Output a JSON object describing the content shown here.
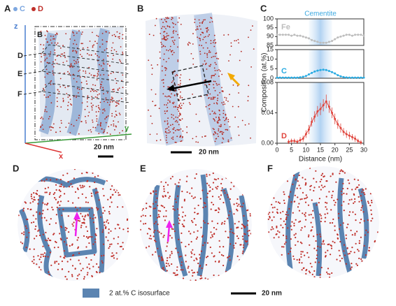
{
  "figure": {
    "panel_labels": [
      "A",
      "B",
      "C",
      "D",
      "E",
      "F"
    ],
    "panel_a": {
      "legend": [
        "C",
        "D"
      ],
      "inset_label": "B",
      "slices": [
        "D",
        "E",
        "F"
      ],
      "axes": [
        "z",
        "y",
        "x"
      ],
      "scale_bar": "20 nm"
    },
    "panel_b": {
      "scale_bar": "20 nm"
    },
    "legend": {
      "isosurface": "2 at.% C isosurface",
      "scale_bar": "20 nm"
    }
  },
  "chart_data": [
    {
      "type": "line",
      "annotation": {
        "text": "Cementite",
        "xrange": [
          11,
          19
        ]
      },
      "x": [
        0,
        1,
        2,
        3,
        4,
        5,
        6,
        7,
        8,
        9,
        10,
        11,
        12,
        13,
        14,
        15,
        16,
        17,
        18,
        19,
        20,
        21,
        22,
        23,
        24,
        25,
        26,
        27,
        28,
        29,
        30
      ],
      "series": [
        {
          "name": "Fe",
          "color": "#bdbdbd",
          "values": [
            91,
            91,
            91,
            91,
            91,
            90.5,
            91,
            90.5,
            90.5,
            90,
            89.5,
            89,
            88,
            87.5,
            87,
            86.5,
            86.5,
            86.5,
            87,
            87.5,
            88.5,
            89.5,
            90,
            90.5,
            91,
            91,
            90.5,
            91,
            91,
            91,
            90.5
          ]
        }
      ],
      "xlim": [
        0,
        30
      ],
      "ylim": [
        85,
        100
      ],
      "yticks": [
        85,
        90,
        95,
        100
      ]
    },
    {
      "type": "line",
      "x": [
        0,
        1,
        2,
        3,
        4,
        5,
        6,
        7,
        8,
        9,
        10,
        11,
        12,
        13,
        14,
        15,
        16,
        17,
        18,
        19,
        20,
        21,
        22,
        23,
        24,
        25,
        26,
        27,
        28,
        29,
        30
      ],
      "series": [
        {
          "name": "C",
          "color": "#29abe2",
          "values": [
            0.3,
            0.3,
            0.3,
            0.3,
            0.3,
            0.3,
            0.3,
            0.3,
            0.5,
            0.8,
            1.2,
            2,
            2.8,
            3.5,
            4,
            4.3,
            4.5,
            4.3,
            3.8,
            3.2,
            2.5,
            1.6,
            1,
            0.6,
            0.4,
            0.3,
            0.3,
            0.3,
            0.3,
            0.3,
            0.3
          ]
        }
      ],
      "xlim": [
        0,
        30
      ],
      "ylim": [
        0,
        15
      ],
      "yticks": [
        0,
        5,
        10,
        15
      ],
      "ylabel": "Composition (at.%)"
    },
    {
      "type": "errorbar",
      "x": [
        4,
        5,
        6,
        7,
        8,
        9,
        10,
        11,
        12,
        13,
        14,
        15,
        16,
        17,
        18,
        19,
        20,
        21,
        22,
        23,
        24,
        25,
        26,
        27,
        28,
        29
      ],
      "series": [
        {
          "name": "D",
          "color": "#e0443c",
          "values": [
            0.002,
            0.003,
            0.003,
            0.002,
            0.004,
            0.006,
            0.012,
            0.018,
            0.028,
            0.035,
            0.042,
            0.045,
            0.05,
            0.055,
            0.048,
            0.04,
            0.032,
            0.025,
            0.02,
            0.015,
            0.012,
            0.01,
            0.008,
            0.006,
            0.003,
            0.001
          ],
          "errors": [
            0.003,
            0.003,
            0.003,
            0.003,
            0.004,
            0.004,
            0.005,
            0.006,
            0.006,
            0.007,
            0.007,
            0.008,
            0.008,
            0.009,
            0.008,
            0.007,
            0.007,
            0.006,
            0.006,
            0.005,
            0.005,
            0.005,
            0.004,
            0.004,
            0.003,
            0.003
          ]
        }
      ],
      "xlim": [
        0,
        30
      ],
      "ylim": [
        0,
        0.08
      ],
      "yticks": [
        {
          "value": 0,
          "label": "0.00"
        },
        0.04,
        0.08
      ],
      "xticks": [
        0,
        5,
        10,
        15,
        20,
        25,
        30
      ],
      "xlabel": "Distance (nm)"
    }
  ]
}
